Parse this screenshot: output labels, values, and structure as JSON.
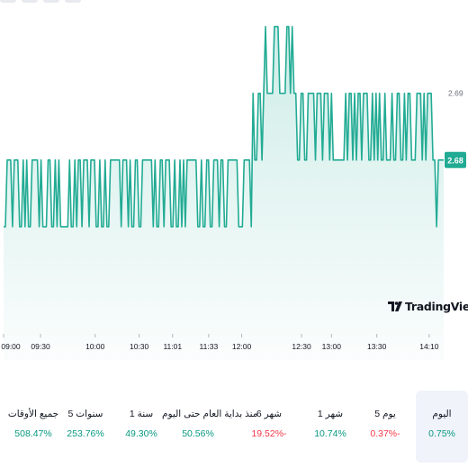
{
  "chart_data": {
    "type": "area",
    "x_ticks": [
      "09:00",
      "09:30",
      "10:00",
      "10:30",
      "11:01",
      "11:33",
      "12:00",
      "12:30",
      "13:00",
      "13:30",
      "14:10"
    ],
    "y_ticks": [
      2.69
    ],
    "last_value_label": "2.68",
    "y_range": [
      2.65,
      2.704
    ],
    "low": 2.67,
    "high": 2.68,
    "early_high": 2.69,
    "peak": 2.7,
    "pattern": "00111011100101001111010001100101000001001011011101110010010011111101110100110011111101001101110010010101111110010011001110110011111100011110100110010000111000011010100110011110111011101000000010110101101110010101001000100110010110001110101111001111",
    "pre_jump_points": 140,
    "total_points": 240,
    "tail_values": [
      2.69,
      2.68,
      2.68,
      2.67,
      2.68,
      2.68,
      2.68,
      2.68
    ],
    "line_color": "#22ab94",
    "fill_color": "#22ab94",
    "grid": false
  },
  "watermark": {
    "text": "TradingView",
    "icon": "tradingview-logo-icon"
  },
  "periods": [
    {
      "label": "اليوم",
      "value": "0.75%",
      "trend": "pos",
      "active": true
    },
    {
      "label": "5 يوم",
      "value": "0.37%-",
      "trend": "neg",
      "active": false
    },
    {
      "label": "1 شهر",
      "value": "10.74%",
      "trend": "pos",
      "active": false
    },
    {
      "label": "6 شهر",
      "value": "19.52%-",
      "trend": "neg",
      "active": false
    },
    {
      "label": "منذ بداية العام حتى اليوم",
      "value": "50.56%",
      "trend": "pos",
      "active": false
    },
    {
      "label": "1 سنة",
      "value": "49.30%",
      "trend": "pos",
      "active": false
    },
    {
      "label": "5 سنوات",
      "value": "253.76%",
      "trend": "pos",
      "active": false
    },
    {
      "label": "جميع الأوقات",
      "value": "508.47%",
      "trend": "pos",
      "active": false
    }
  ]
}
